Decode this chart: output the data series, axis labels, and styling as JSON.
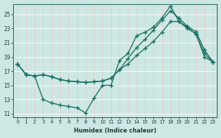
{
  "bg_color": "#cde8e4",
  "grid_color": "#b0d8d4",
  "line_color": "#1a7060",
  "xlabel": "Humidex (Indice chaleur)",
  "xlim": [
    -0.5,
    23.5
  ],
  "ylim": [
    10.5,
    26.5
  ],
  "xticks": [
    0,
    1,
    2,
    3,
    4,
    5,
    6,
    7,
    8,
    9,
    10,
    11,
    12,
    13,
    14,
    15,
    16,
    17,
    18,
    19,
    20,
    21,
    22,
    23
  ],
  "yticks": [
    11,
    13,
    15,
    17,
    19,
    21,
    23,
    25
  ],
  "line_jagged_y": [
    18.0,
    16.5,
    16.3,
    13.0,
    12.5,
    12.2,
    12.0,
    11.8,
    11.1,
    13.2,
    15.0,
    15.0,
    18.5,
    19.5,
    22.0,
    22.5,
    23.2,
    24.5,
    26.2,
    24.0,
    23.2,
    22.2,
    19.5,
    18.3
  ],
  "line_upper_y": [
    18.0,
    16.5,
    16.3,
    16.5,
    16.2,
    15.8,
    15.6,
    15.5,
    15.4,
    15.5,
    15.6,
    16.0,
    17.2,
    18.8,
    20.3,
    21.5,
    22.8,
    24.2,
    25.5,
    24.5,
    23.3,
    22.6,
    20.0,
    18.3
  ],
  "line_lower_y": [
    18.0,
    16.5,
    16.3,
    16.5,
    16.2,
    15.8,
    15.6,
    15.5,
    15.4,
    15.5,
    15.6,
    16.0,
    17.2,
    18.0,
    19.2,
    20.2,
    21.2,
    22.5,
    24.0,
    24.0,
    23.0,
    22.3,
    19.0,
    18.3
  ]
}
